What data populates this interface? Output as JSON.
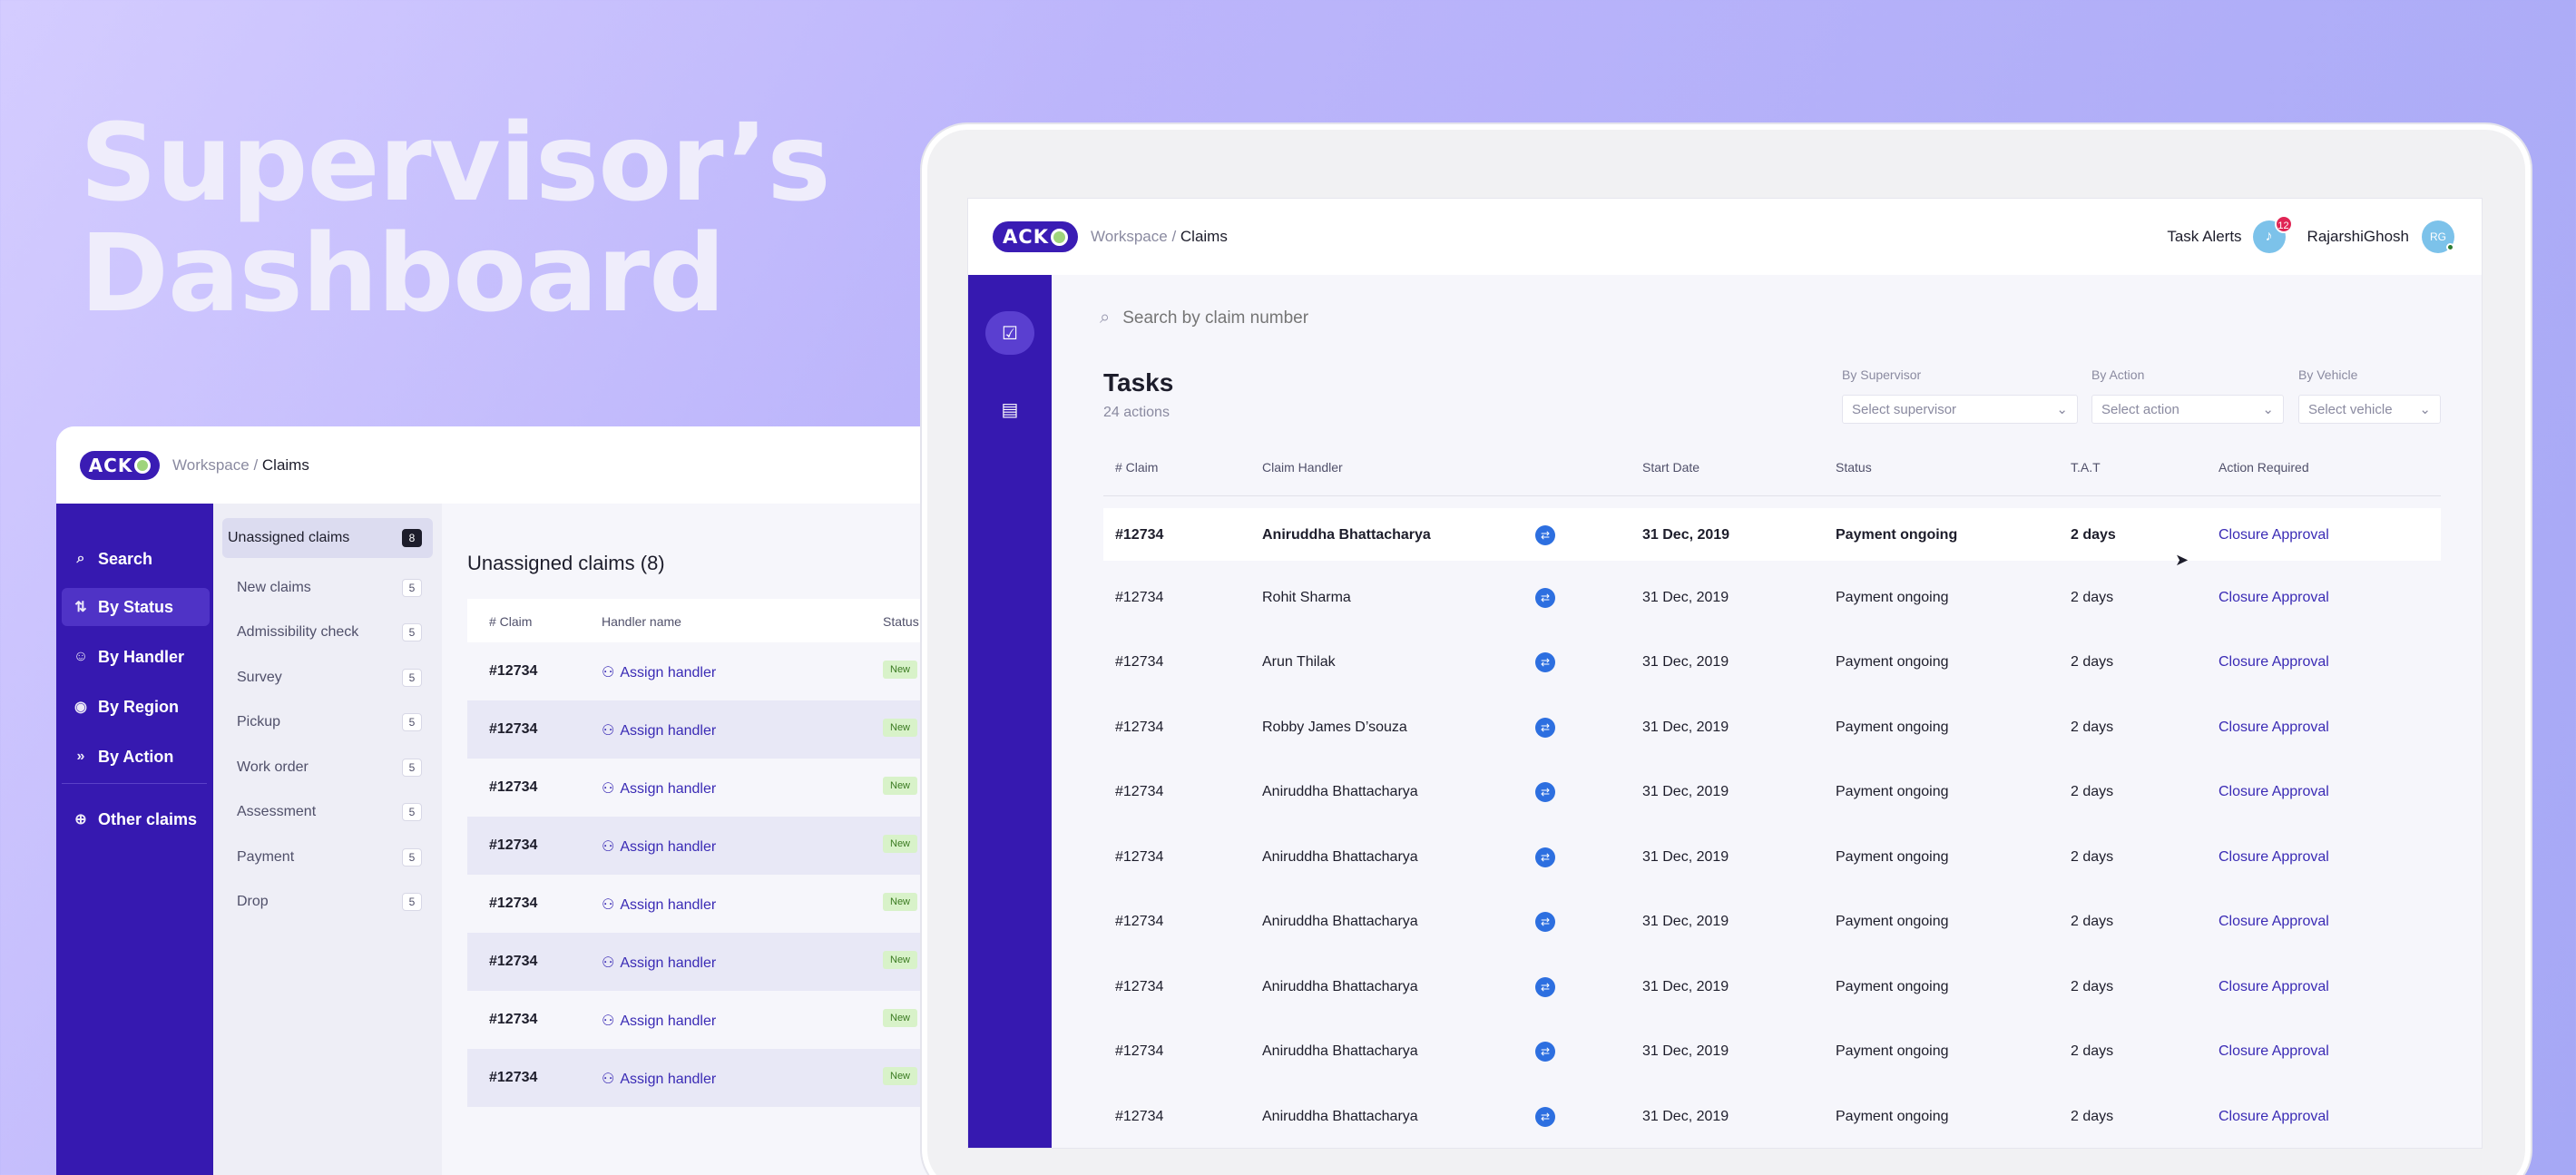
{
  "hero": {
    "line1": "Supervisor’s",
    "line2": "Dashboard"
  },
  "colors": {
    "primary": "#3619b0",
    "accent": "#3a2bb5",
    "badge_bg": "#d8f2c9",
    "alert": "#e02454",
    "swap_icon": "#2d6fe0"
  },
  "brand": {
    "logo_text": "ACK"
  },
  "left_panel": {
    "breadcrumb": {
      "root": "Workspace",
      "sep": " / ",
      "current": "Claims"
    },
    "nav": [
      {
        "label": "Search",
        "icon": "search-icon"
      },
      {
        "label": "By Status",
        "icon": "status-icon",
        "active": true
      },
      {
        "label": "By Handler",
        "icon": "users-icon"
      },
      {
        "label": "By Region",
        "icon": "location-pin-icon"
      },
      {
        "label": "By Action",
        "icon": "fast-forward-icon"
      },
      {
        "label": "Other claims",
        "icon": "globe-icon"
      }
    ],
    "sub_nav": [
      {
        "label": "Unassigned claims",
        "count": "8",
        "active": true
      },
      {
        "label": "New claims",
        "count": "5"
      },
      {
        "label": "Admissibility check",
        "count": "5"
      },
      {
        "label": "Survey",
        "count": "5"
      },
      {
        "label": "Pickup",
        "count": "5"
      },
      {
        "label": "Work order",
        "count": "5"
      },
      {
        "label": "Assessment",
        "count": "5"
      },
      {
        "label": "Payment",
        "count": "5"
      },
      {
        "label": "Drop",
        "count": "5"
      }
    ],
    "section_title": "Unassigned claims (8)",
    "columns": {
      "claim": "# Claim",
      "handler": "Handler name",
      "status": "Status"
    },
    "rows": [
      {
        "claim": "#12734",
        "action": "Assign handler",
        "status": "New"
      },
      {
        "claim": "#12734",
        "action": "Assign handler",
        "status": "New"
      },
      {
        "claim": "#12734",
        "action": "Assign handler",
        "status": "New"
      },
      {
        "claim": "#12734",
        "action": "Assign handler",
        "status": "New"
      },
      {
        "claim": "#12734",
        "action": "Assign handler",
        "status": "New"
      },
      {
        "claim": "#12734",
        "action": "Assign handler",
        "status": "New"
      },
      {
        "claim": "#12734",
        "action": "Assign handler",
        "status": "New"
      },
      {
        "claim": "#12734",
        "action": "Assign handler",
        "status": "New"
      }
    ]
  },
  "right_panel": {
    "breadcrumb": {
      "root": "Workspace",
      "sep": " / ",
      "current": "Claims"
    },
    "task_alerts": {
      "label": "Task Alerts",
      "count": "12"
    },
    "user": {
      "name": "RajarshiGhosh",
      "initials": "RG"
    },
    "search": {
      "placeholder": "Search by claim number"
    },
    "title": "Tasks",
    "subtitle": "24 actions",
    "filters": [
      {
        "label": "By Supervisor",
        "placeholder": "Select supervisor"
      },
      {
        "label": "By Action",
        "placeholder": "Select action"
      },
      {
        "label": "By Vehicle",
        "placeholder": "Select vehicle"
      }
    ],
    "columns": {
      "claim": "# Claim",
      "handler": "Claim Handler",
      "start_date": "Start Date",
      "status": "Status",
      "tat": "T.A.T",
      "action": "Action Required"
    },
    "rows": [
      {
        "claim": "#12734",
        "handler": "Aniruddha Bhattacharya",
        "start_date": "31 Dec, 2019",
        "status": "Payment ongoing",
        "tat": "2 days",
        "action": "Closure Approval",
        "highlight": true
      },
      {
        "claim": "#12734",
        "handler": "Rohit Sharma",
        "start_date": "31 Dec, 2019",
        "status": "Payment ongoing",
        "tat": "2 days",
        "action": "Closure Approval"
      },
      {
        "claim": "#12734",
        "handler": "Arun Thilak",
        "start_date": "31 Dec, 2019",
        "status": "Payment ongoing",
        "tat": "2 days",
        "action": "Closure Approval"
      },
      {
        "claim": "#12734",
        "handler": "Robby James D’souza",
        "start_date": "31 Dec, 2019",
        "status": "Payment ongoing",
        "tat": "2 days",
        "action": "Closure Approval"
      },
      {
        "claim": "#12734",
        "handler": "Aniruddha Bhattacharya",
        "start_date": "31 Dec, 2019",
        "status": "Payment ongoing",
        "tat": "2 days",
        "action": "Closure Approval"
      },
      {
        "claim": "#12734",
        "handler": "Aniruddha Bhattacharya",
        "start_date": "31 Dec, 2019",
        "status": "Payment ongoing",
        "tat": "2 days",
        "action": "Closure Approval"
      },
      {
        "claim": "#12734",
        "handler": "Aniruddha Bhattacharya",
        "start_date": "31 Dec, 2019",
        "status": "Payment ongoing",
        "tat": "2 days",
        "action": "Closure Approval"
      },
      {
        "claim": "#12734",
        "handler": "Aniruddha Bhattacharya",
        "start_date": "31 Dec, 2019",
        "status": "Payment ongoing",
        "tat": "2 days",
        "action": "Closure Approval"
      },
      {
        "claim": "#12734",
        "handler": "Aniruddha Bhattacharya",
        "start_date": "31 Dec, 2019",
        "status": "Payment ongoing",
        "tat": "2 days",
        "action": "Closure Approval"
      },
      {
        "claim": "#12734",
        "handler": "Aniruddha Bhattacharya",
        "start_date": "31 Dec, 2019",
        "status": "Payment ongoing",
        "tat": "2 days",
        "action": "Closure Approval"
      }
    ]
  }
}
